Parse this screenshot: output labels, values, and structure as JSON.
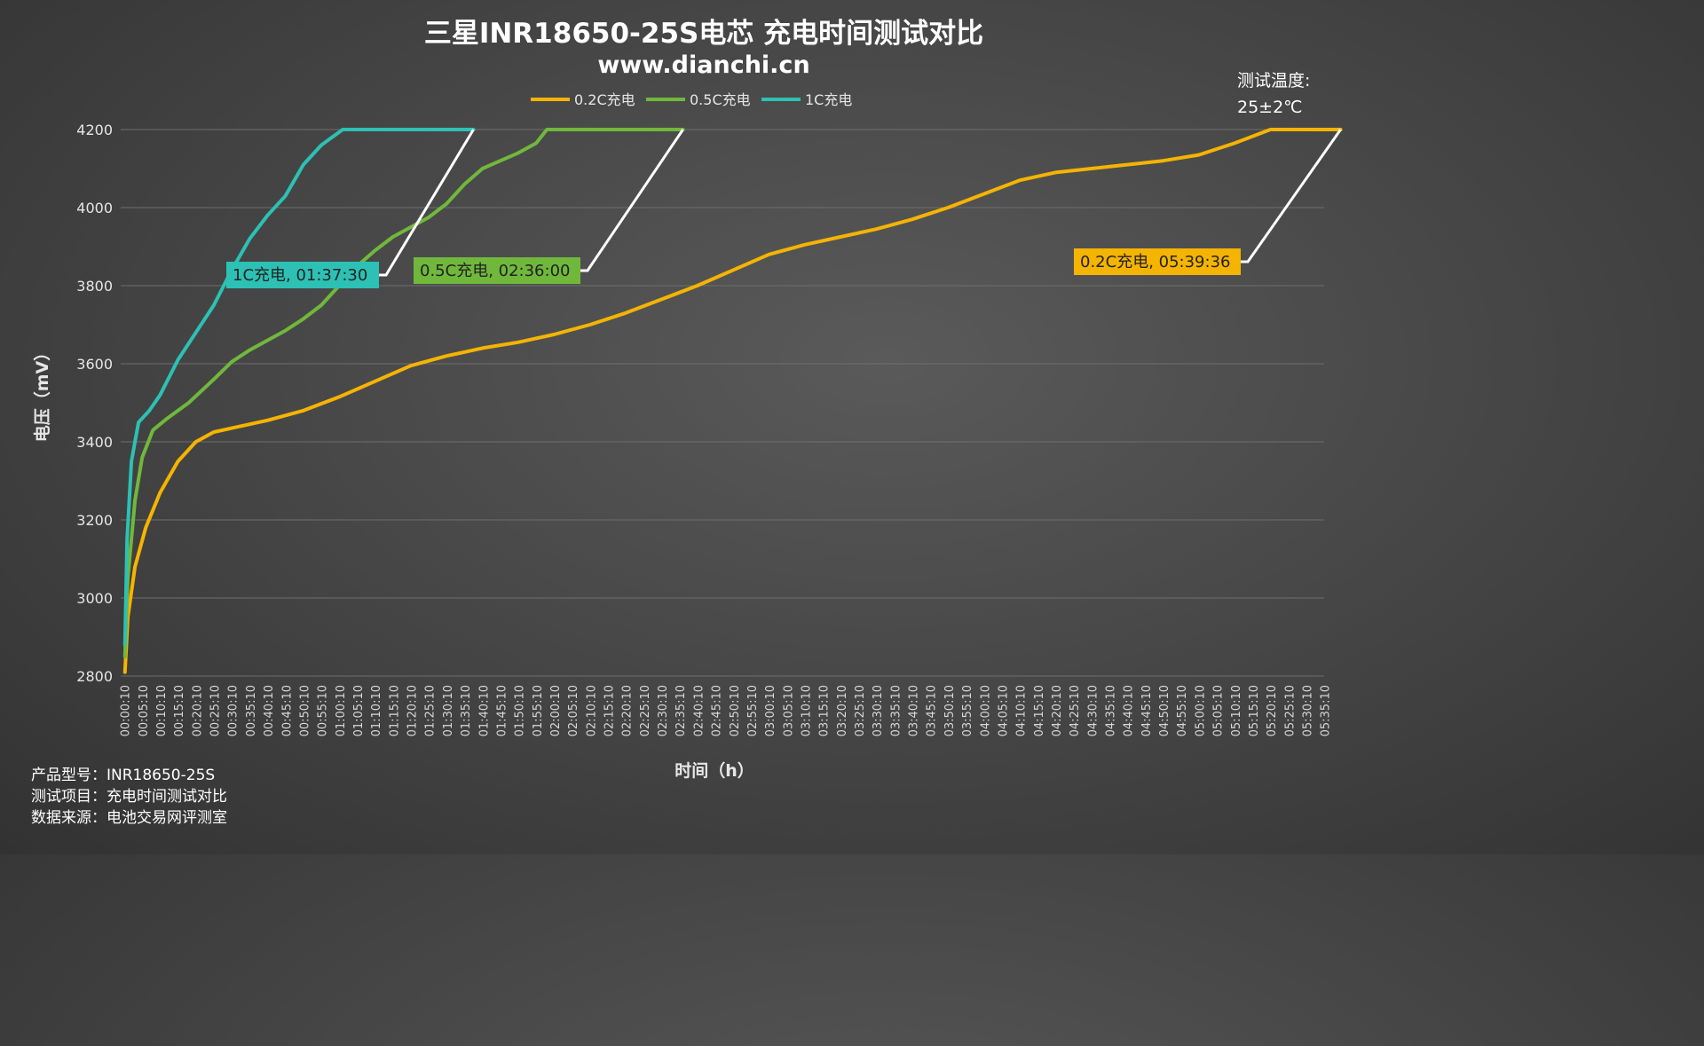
{
  "chart_data": {
    "type": "line",
    "title": "三星INR18650-25S电芯 充电时间测试对比",
    "subtitle": "www.dianchi.cn",
    "xlabel": "时间（h）",
    "ylabel": "电压（mV）",
    "ylim": [
      2800,
      4200
    ],
    "y_ticks": [
      "2800",
      "3000",
      "3200",
      "3400",
      "3600",
      "3800",
      "4000",
      "4200"
    ],
    "x_unit_minutes": true,
    "xlim": [
      0,
      335
    ],
    "x_ticks": [
      "00:00:10",
      "00:05:10",
      "00:10:10",
      "00:15:10",
      "00:20:10",
      "00:25:10",
      "00:30:10",
      "00:35:10",
      "00:40:10",
      "00:45:10",
      "00:50:10",
      "00:55:10",
      "01:00:10",
      "01:05:10",
      "01:10:10",
      "01:15:10",
      "01:20:10",
      "01:25:10",
      "01:30:10",
      "01:35:10",
      "01:40:10",
      "01:45:10",
      "01:50:10",
      "01:55:10",
      "02:00:10",
      "02:05:10",
      "02:10:10",
      "02:15:10",
      "02:20:10",
      "02:25:10",
      "02:30:10",
      "02:35:10",
      "02:40:10",
      "02:45:10",
      "02:50:10",
      "02:55:10",
      "03:00:10",
      "03:05:10",
      "03:10:10",
      "03:15:10",
      "03:20:10",
      "03:25:10",
      "03:30:10",
      "03:35:10",
      "03:40:10",
      "03:45:10",
      "03:50:10",
      "03:55:10",
      "04:00:10",
      "04:05:10",
      "04:10:10",
      "04:15:10",
      "04:20:10",
      "04:25:10",
      "04:30:10",
      "04:35:10",
      "04:40:10",
      "04:45:10",
      "04:50:10",
      "04:55:10",
      "05:00:10",
      "05:05:10",
      "05:10:10",
      "05:15:10",
      "05:20:10",
      "05:25:10",
      "05:30:10",
      "05:35:10"
    ],
    "grid": true,
    "legend_position": "top",
    "series": [
      {
        "name": "0.2C充电",
        "color": "#F5B400",
        "x": [
          0.2,
          1,
          3,
          6,
          10,
          15,
          20,
          25,
          30,
          40,
          50,
          60,
          70,
          80,
          90,
          100,
          110,
          120,
          130,
          140,
          150,
          160,
          170,
          180,
          190,
          200,
          210,
          220,
          230,
          240,
          250,
          260,
          270,
          280,
          290,
          300,
          310,
          320,
          325,
          339.6
        ],
        "y": [
          2810,
          2950,
          3080,
          3180,
          3270,
          3350,
          3400,
          3425,
          3435,
          3455,
          3480,
          3515,
          3555,
          3595,
          3620,
          3640,
          3655,
          3675,
          3700,
          3730,
          3765,
          3800,
          3840,
          3880,
          3905,
          3925,
          3945,
          3970,
          4000,
          4035,
          4070,
          4090,
          4100,
          4110,
          4120,
          4135,
          4165,
          4200,
          4200,
          4200
        ]
      },
      {
        "name": "0.5C充电",
        "color": "#70B83C",
        "x": [
          0.2,
          1,
          3,
          5,
          8,
          12,
          18,
          25,
          30,
          35,
          40,
          45,
          50,
          55,
          60,
          65,
          70,
          75,
          80,
          85,
          90,
          95,
          100,
          105,
          110,
          115,
          118,
          125,
          140,
          156
        ],
        "y": [
          2850,
          3050,
          3250,
          3360,
          3430,
          3460,
          3500,
          3560,
          3605,
          3635,
          3660,
          3685,
          3715,
          3750,
          3800,
          3850,
          3890,
          3925,
          3950,
          3975,
          4010,
          4060,
          4100,
          4120,
          4140,
          4165,
          4200,
          4200,
          4200,
          4200
        ]
      },
      {
        "name": "1C充电",
        "color": "#2CC1B4",
        "x": [
          0.2,
          0.8,
          2,
          4,
          7,
          10,
          15,
          20,
          25,
          30,
          35,
          40,
          45,
          50,
          55,
          58,
          61,
          70,
          85,
          97.5
        ],
        "y": [
          2880,
          3150,
          3350,
          3450,
          3480,
          3520,
          3610,
          3680,
          3750,
          3840,
          3920,
          3980,
          4030,
          4110,
          4160,
          4180,
          4200,
          4200,
          4200,
          4200
        ]
      }
    ],
    "annotations": [
      {
        "text": "1C充电, 01:37:30",
        "series": 2,
        "color": "#2CC1B4",
        "text_color": "#222222",
        "x": 97.5,
        "y": 4200
      },
      {
        "text": "0.5C充电, 02:36:00",
        "series": 1,
        "color": "#70B83C",
        "text_color": "#222222",
        "x": 156,
        "y": 4200
      },
      {
        "text": "0.2C充电, 05:39:36",
        "series": 0,
        "color": "#F5B400",
        "text_color": "#222222",
        "x": 339.6,
        "y": 4200
      }
    ]
  },
  "note": {
    "line1": "测试温度:",
    "line2": "25±2℃"
  },
  "footer": {
    "model": "产品型号：INR18650-25S",
    "item": "测试项目：充电时间测试对比",
    "source": "数据来源：电池交易网评测室"
  }
}
